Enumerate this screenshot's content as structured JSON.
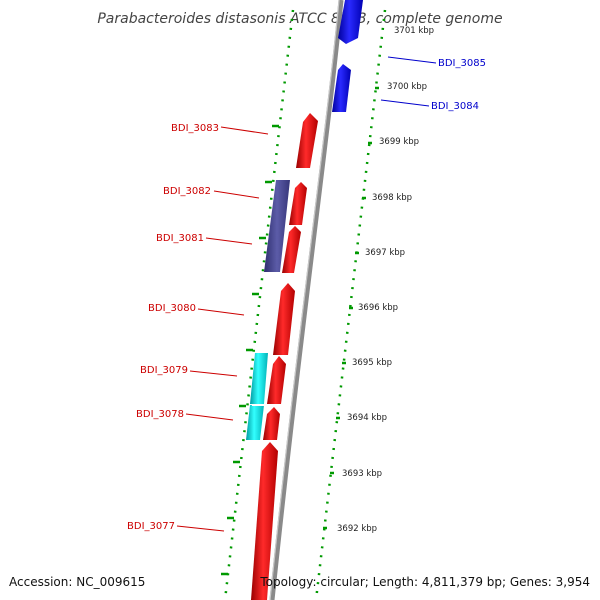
{
  "title": "Parabacteroides distasonis ATCC 8503, complete genome",
  "accession": "Accession: NC_009615",
  "topology": "Topology: circular; Length: 4,811,379 bp; Genes: 3,954",
  "colors": {
    "forward_gene": "#ff0000",
    "reverse_gene": "#0000ff",
    "rna_gene": "#00e5ee",
    "other_gene": "#4b4b9b",
    "tick": "#009900",
    "backbone": "#777777",
    "forward_label": "#cc0000",
    "reverse_label": "#0000cc"
  },
  "kbp_labels": [
    "3701 kbp",
    "3700 kbp",
    "3699 kbp",
    "3698 kbp",
    "3697 kbp",
    "3696 kbp",
    "3695 kbp",
    "3694 kbp",
    "3693 kbp",
    "3692 kbp"
  ],
  "gene_labels": [
    {
      "name": "BDI_3085",
      "strand": "reverse"
    },
    {
      "name": "BDI_3084",
      "strand": "reverse"
    },
    {
      "name": "BDI_3083",
      "strand": "forward"
    },
    {
      "name": "BDI_3082",
      "strand": "forward"
    },
    {
      "name": "BDI_3081",
      "strand": "forward"
    },
    {
      "name": "BDI_3080",
      "strand": "forward"
    },
    {
      "name": "BDI_3079",
      "strand": "forward"
    },
    {
      "name": "BDI_3078",
      "strand": "forward"
    },
    {
      "name": "BDI_3077",
      "strand": "forward"
    }
  ]
}
